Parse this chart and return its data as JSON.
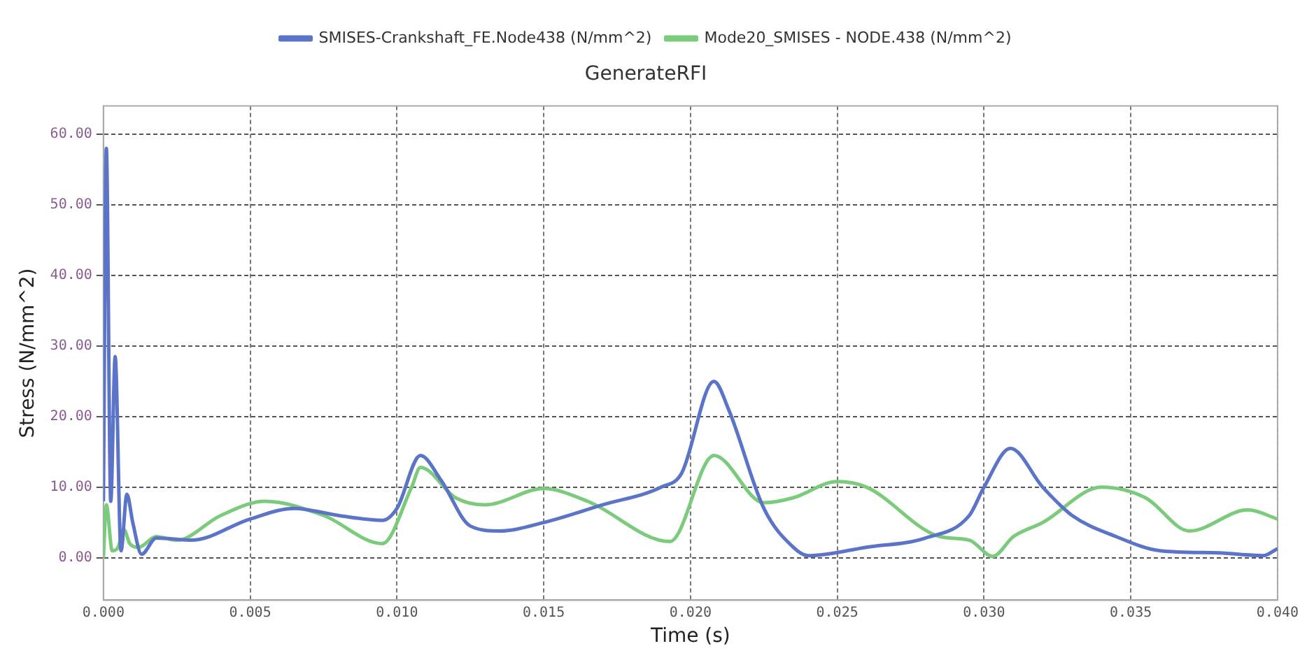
{
  "chart_data": {
    "type": "line",
    "title": "GenerateRFI",
    "xlabel": "Time (s)",
    "ylabel": "Stress (N/mm^2)",
    "xlim": [
      0,
      0.04
    ],
    "xticks": [
      {
        "value": 0,
        "label": "0.000"
      },
      {
        "value": 0.005,
        "label": "0.005"
      },
      {
        "value": 0.01,
        "label": "0.010"
      },
      {
        "value": 0.015,
        "label": "0.015"
      },
      {
        "value": 0.02,
        "label": "0.020"
      },
      {
        "value": 0.025,
        "label": "0.025"
      },
      {
        "value": 0.03,
        "label": "0.030"
      },
      {
        "value": 0.035,
        "label": "0.035"
      },
      {
        "value": 0.04,
        "label": "0.040"
      }
    ],
    "ylim": [
      -6,
      64
    ],
    "yticks": [
      {
        "value": 0,
        "label": "0.00"
      },
      {
        "value": 10,
        "label": "10.00"
      },
      {
        "value": 20,
        "label": "20.00"
      },
      {
        "value": 30,
        "label": "30.00"
      },
      {
        "value": 40,
        "label": "40.00"
      },
      {
        "value": 50,
        "label": "50.00"
      },
      {
        "value": 60,
        "label": "60.00"
      }
    ],
    "grid": true,
    "legend": "top",
    "marker": "none",
    "line_style": "solid",
    "series": [
      {
        "name": "SMISES-Crankshaft_FE.Node438 (N/mm^2)",
        "color": "#5b74c8",
        "x": [
          0,
          0.0001,
          0.00025,
          0.0004,
          0.0006,
          0.0008,
          0.001,
          0.0013,
          0.0018,
          0.003,
          0.005,
          0.0065,
          0.008,
          0.0095,
          0.01,
          0.0108,
          0.0115,
          0.0125,
          0.0135,
          0.015,
          0.017,
          0.019,
          0.0197,
          0.0208,
          0.0213,
          0.0225,
          0.0235,
          0.024,
          0.026,
          0.028,
          0.0295,
          0.03,
          0.0309,
          0.032,
          0.033,
          0.0345,
          0.036,
          0.038,
          0.0395,
          0.04
        ],
        "values": [
          8,
          58,
          8,
          28.5,
          1,
          9,
          5,
          0.5,
          2.8,
          2.5,
          5.5,
          7,
          6,
          5.3,
          7,
          14.5,
          11,
          4.5,
          3.8,
          5,
          7.5,
          10,
          12,
          25,
          21,
          7,
          1.5,
          0.3,
          1.5,
          2.8,
          6,
          10,
          15.5,
          10,
          6,
          3,
          1,
          0.7,
          0.3,
          1.3
        ]
      },
      {
        "name": "Mode20_SMISES - NODE.438 (N/mm^2)",
        "color": "#7ccb7c",
        "x": [
          0,
          0.0001,
          0.0003,
          0.0005,
          0.0007,
          0.0009,
          0.0012,
          0.0018,
          0.0025,
          0.004,
          0.0055,
          0.0075,
          0.0095,
          0.0105,
          0.0108,
          0.012,
          0.013,
          0.015,
          0.0165,
          0.0193,
          0.0208,
          0.0225,
          0.0235,
          0.025,
          0.026,
          0.0285,
          0.0295,
          0.0303,
          0.031,
          0.032,
          0.034,
          0.0355,
          0.037,
          0.039,
          0.04
        ],
        "values": [
          0,
          7.5,
          1,
          1.5,
          4,
          2,
          1.5,
          3,
          2.5,
          6,
          8,
          6,
          2,
          10,
          12.8,
          8.5,
          7.5,
          9.8,
          8,
          2.3,
          14.5,
          7.8,
          8.5,
          10.8,
          10,
          3,
          2.5,
          0.2,
          3,
          5,
          10,
          8.5,
          3.8,
          6.8,
          5.5
        ]
      }
    ]
  }
}
